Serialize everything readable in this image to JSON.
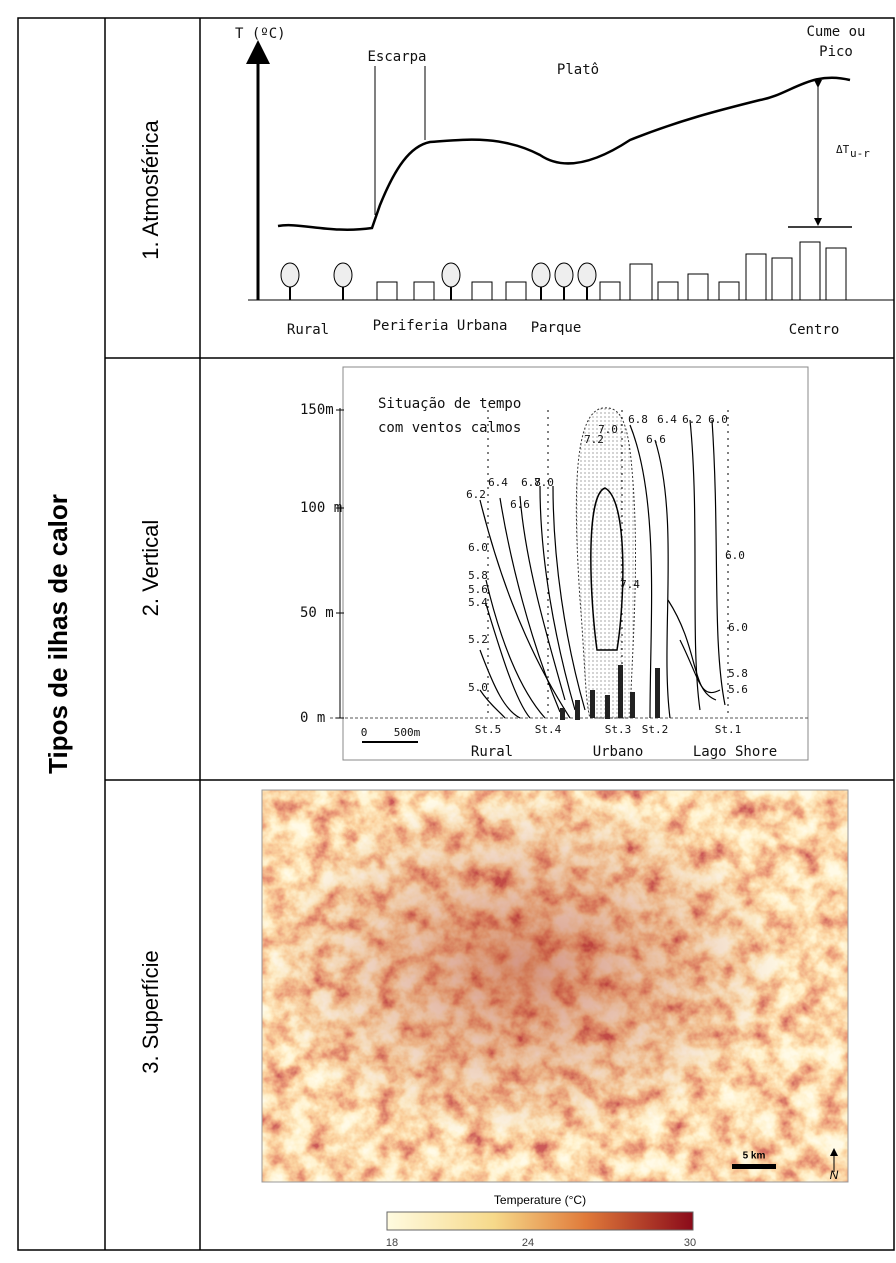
{
  "title": "Tipos de ilhas de calor",
  "rows": [
    {
      "label": "1.  Atmosférica",
      "diagram": {
        "axis_label": "T (ºC)",
        "escarpa": "Escarpa",
        "plato": "Platô",
        "peak": [
          "Cume ou",
          "Pico"
        ],
        "delta": "ΔT",
        "delta_sub": "u-r",
        "zones": [
          "Rural",
          "Periferia Urbana",
          "Parque",
          "Centro"
        ]
      }
    },
    {
      "label": "2.  Vertical",
      "diagram": {
        "heights": [
          "150m",
          "100 m",
          "50 m",
          "0 m"
        ],
        "note": [
          "Situação de tempo",
          "com ventos calmos"
        ],
        "isotherms": [
          "6.2",
          "6.4",
          "6.6",
          "6.8",
          "7.0",
          "6.0",
          "5.8",
          "5.6",
          "5.4",
          "5.2",
          "5.0",
          "7.0",
          "7.2",
          "6.8",
          "6.6",
          "6.4",
          "6.2",
          "6.0",
          "7.4",
          "6.0",
          "6.0",
          "5.8",
          "5.6"
        ],
        "stations": [
          "St.5",
          "St.4",
          "St.3",
          "St.2",
          "St.1"
        ],
        "scale": [
          "0",
          "500m"
        ],
        "zones": [
          "Rural",
          "Urbano",
          "Lago Shore"
        ]
      }
    },
    {
      "label": "3.  Superfície",
      "diagram": {
        "scale_bar": "5 km",
        "north": "N",
        "legend_title": "Temperature (°C)",
        "legend_ticks": [
          "18",
          "24",
          "30"
        ]
      }
    }
  ]
}
